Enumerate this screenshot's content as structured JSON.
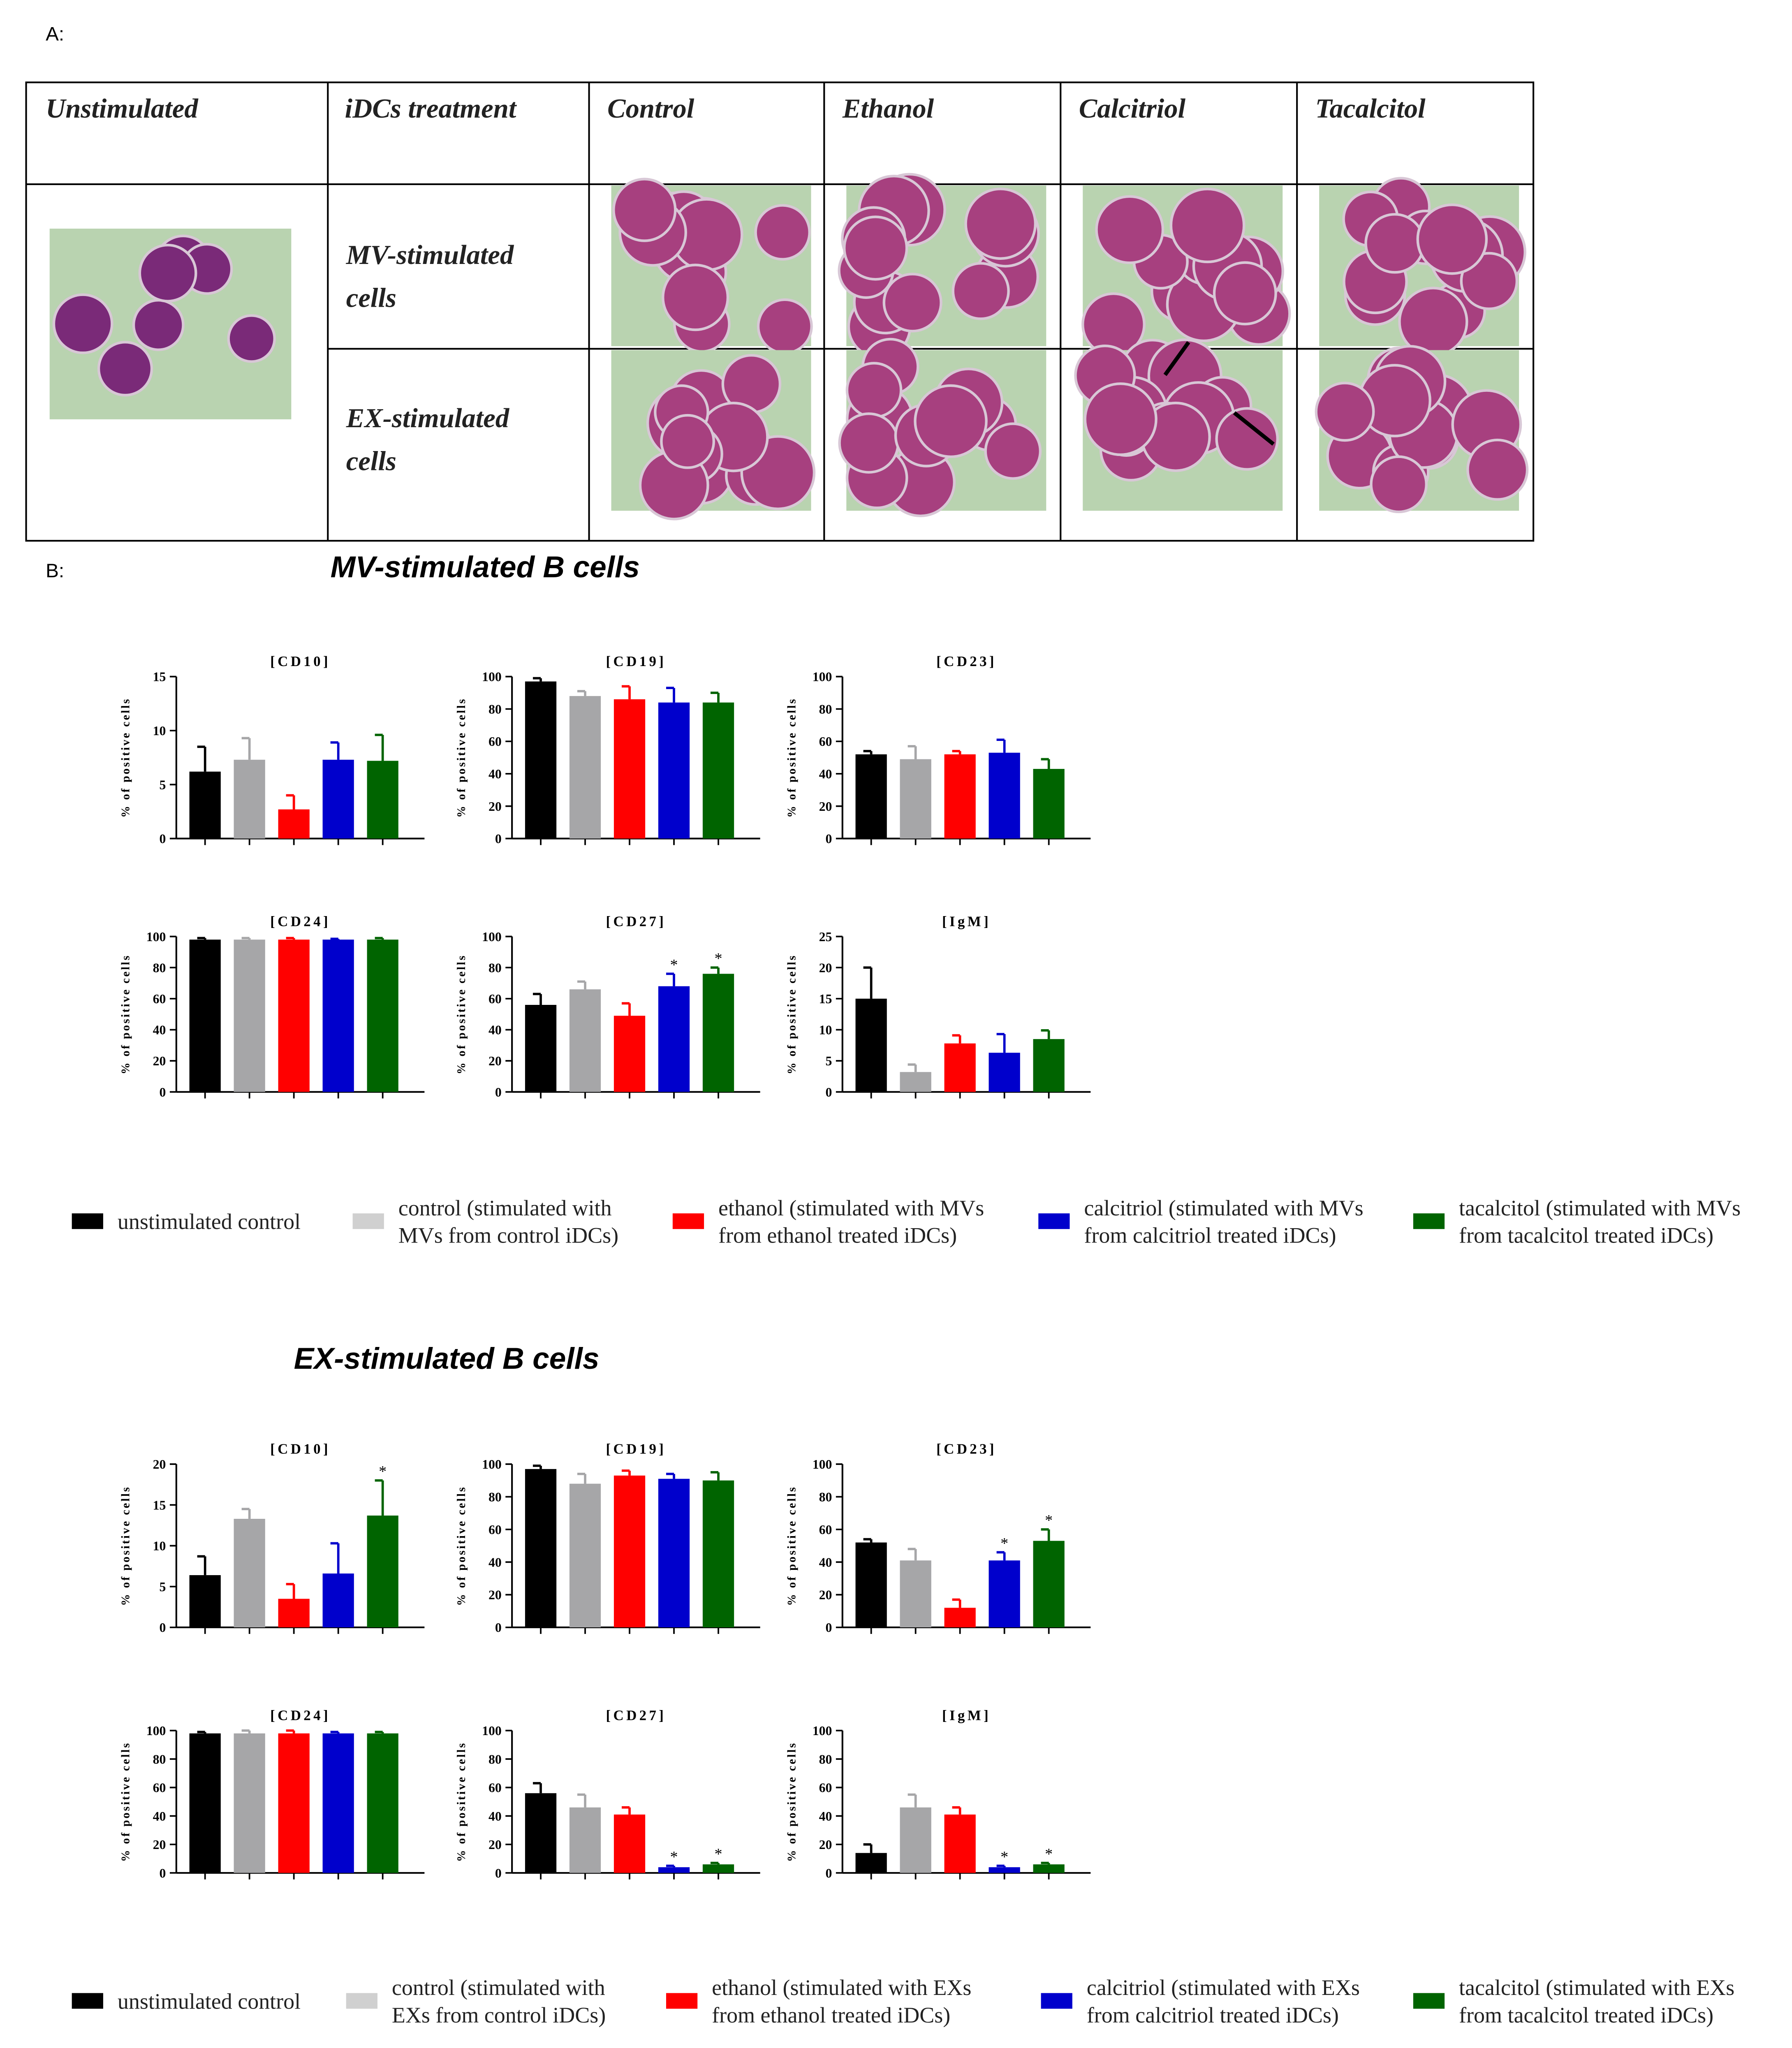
{
  "panel_a": {
    "label": "A:",
    "header": [
      "Unstimulated",
      "iDCs treatment",
      "Control",
      "Ethanol",
      "Calcitriol",
      "Tacalcitol"
    ],
    "rows": [
      {
        "label": [
          "MV-stimulated",
          "cells"
        ]
      },
      {
        "label": [
          "EX-stimulated",
          "cells"
        ]
      }
    ]
  },
  "panel_b": {
    "label": "B:",
    "sections": [
      "MV-stimulated B cells",
      "EX-stimulated B cells"
    ]
  },
  "chart_data": [
    {
      "type": "bar",
      "title": "[CD10]",
      "y_label": "% of positive cells",
      "ylim": [
        0,
        15
      ],
      "yticks": [
        0,
        5,
        10,
        15
      ],
      "values": [
        6.2,
        7.3,
        2.7,
        7.3,
        7.2
      ],
      "errors": [
        2.3,
        2.0,
        1.3,
        1.6,
        2.4
      ],
      "colors": [
        "#000000",
        "#a6a6a8",
        "#ff0000",
        "#0000cc",
        "#006400"
      ],
      "significance": [
        null,
        null,
        null,
        null,
        null
      ]
    },
    {
      "type": "bar",
      "title": "[CD19]",
      "y_label": "% of positive cells",
      "ylim": [
        0,
        100
      ],
      "yticks": [
        0,
        20,
        40,
        60,
        80,
        100
      ],
      "values": [
        97,
        88,
        86,
        84,
        84
      ],
      "errors": [
        2,
        3,
        8,
        9,
        6
      ],
      "colors": [
        "#000000",
        "#a6a6a8",
        "#ff0000",
        "#0000cc",
        "#006400"
      ],
      "significance": [
        null,
        null,
        null,
        null,
        null
      ]
    },
    {
      "type": "bar",
      "title": "[CD23]",
      "y_label": "% of positive cells",
      "ylim": [
        0,
        100
      ],
      "yticks": [
        0,
        20,
        40,
        60,
        80,
        100
      ],
      "values": [
        52,
        49,
        52,
        53,
        43
      ],
      "errors": [
        2,
        8,
        2,
        8,
        6
      ],
      "colors": [
        "#000000",
        "#a6a6a8",
        "#ff0000",
        "#0000cc",
        "#006400"
      ],
      "significance": [
        null,
        null,
        null,
        null,
        null
      ]
    },
    {
      "type": "bar",
      "title": "[CD24]",
      "y_label": "% of positive cells",
      "ylim": [
        0,
        100
      ],
      "yticks": [
        0,
        20,
        40,
        60,
        80,
        100
      ],
      "values": [
        98,
        98,
        98,
        98,
        98
      ],
      "errors": [
        1,
        1,
        1,
        0.5,
        1
      ],
      "colors": [
        "#000000",
        "#a6a6a8",
        "#ff0000",
        "#0000cc",
        "#006400"
      ],
      "significance": [
        null,
        null,
        null,
        null,
        null
      ]
    },
    {
      "type": "bar",
      "title": "[CD27]",
      "y_label": "% of positive cells",
      "ylim": [
        0,
        100
      ],
      "yticks": [
        0,
        20,
        40,
        60,
        80,
        100
      ],
      "values": [
        56,
        66,
        49,
        68,
        76
      ],
      "errors": [
        7,
        5,
        8,
        8,
        4
      ],
      "colors": [
        "#000000",
        "#a6a6a8",
        "#ff0000",
        "#0000cc",
        "#006400"
      ],
      "significance": [
        null,
        null,
        null,
        "*",
        "*"
      ]
    },
    {
      "type": "bar",
      "title": "[IgM]",
      "y_label": "% of positive cells",
      "ylim": [
        0,
        25
      ],
      "yticks": [
        0,
        5,
        10,
        15,
        20,
        25
      ],
      "values": [
        15,
        3.2,
        7.8,
        6.3,
        8.5
      ],
      "errors": [
        5,
        1.2,
        1.3,
        3,
        1.4
      ],
      "colors": [
        "#000000",
        "#a6a6a8",
        "#ff0000",
        "#0000cc",
        "#006400"
      ],
      "significance": [
        null,
        null,
        null,
        null,
        null
      ]
    },
    {
      "type": "bar",
      "title": "[CD10]",
      "y_label": "% of positive cells",
      "ylim": [
        0,
        20
      ],
      "yticks": [
        0,
        5,
        10,
        15,
        20
      ],
      "values": [
        6.4,
        13.3,
        3.5,
        6.6,
        13.7
      ],
      "errors": [
        2.3,
        1.2,
        1.8,
        3.7,
        4.3
      ],
      "colors": [
        "#000000",
        "#a6a6a8",
        "#ff0000",
        "#0000cc",
        "#006400"
      ],
      "significance": [
        null,
        null,
        null,
        null,
        "*"
      ]
    },
    {
      "type": "bar",
      "title": "[CD19]",
      "y_label": "% of positive cells",
      "ylim": [
        0,
        100
      ],
      "yticks": [
        0,
        20,
        40,
        60,
        80,
        100
      ],
      "values": [
        97,
        88,
        93,
        91,
        90
      ],
      "errors": [
        2,
        6,
        3,
        3,
        5
      ],
      "colors": [
        "#000000",
        "#a6a6a8",
        "#ff0000",
        "#0000cc",
        "#006400"
      ],
      "significance": [
        null,
        null,
        null,
        null,
        null
      ]
    },
    {
      "type": "bar",
      "title": "[CD23]",
      "y_label": "% of positive cells",
      "ylim": [
        0,
        100
      ],
      "yticks": [
        0,
        20,
        40,
        60,
        80,
        100
      ],
      "values": [
        52,
        41,
        12,
        41,
        53
      ],
      "errors": [
        2,
        7,
        5,
        5,
        7
      ],
      "colors": [
        "#000000",
        "#a6a6a8",
        "#ff0000",
        "#0000cc",
        "#006400"
      ],
      "significance": [
        null,
        null,
        null,
        "*",
        "*"
      ]
    },
    {
      "type": "bar",
      "title": "[CD24]",
      "y_label": "% of positive cells",
      "ylim": [
        0,
        100
      ],
      "yticks": [
        0,
        20,
        40,
        60,
        80,
        100
      ],
      "values": [
        98,
        98,
        98,
        98,
        98
      ],
      "errors": [
        1,
        2,
        2,
        1,
        1
      ],
      "colors": [
        "#000000",
        "#a6a6a8",
        "#ff0000",
        "#0000cc",
        "#006400"
      ],
      "significance": [
        null,
        null,
        null,
        null,
        null
      ]
    },
    {
      "type": "bar",
      "title": "[CD27]",
      "y_label": "% of positive cells",
      "ylim": [
        0,
        100
      ],
      "yticks": [
        0,
        20,
        40,
        60,
        80,
        100
      ],
      "values": [
        56,
        46,
        41,
        4,
        6
      ],
      "errors": [
        7,
        9,
        5,
        1,
        1
      ],
      "colors": [
        "#000000",
        "#a6a6a8",
        "#ff0000",
        "#0000cc",
        "#006400"
      ],
      "significance": [
        null,
        null,
        null,
        "*",
        "*"
      ]
    },
    {
      "type": "bar",
      "title": "[IgM]",
      "y_label": "% of positive cells",
      "ylim": [
        0,
        100
      ],
      "yticks": [
        0,
        20,
        40,
        60,
        80,
        100
      ],
      "values": [
        14,
        46,
        41,
        4,
        6
      ],
      "errors": [
        6,
        9,
        5,
        1,
        1
      ],
      "colors": [
        "#000000",
        "#a6a6a8",
        "#ff0000",
        "#0000cc",
        "#006400"
      ],
      "significance": [
        null,
        null,
        null,
        "*",
        "*"
      ]
    }
  ],
  "legends": [
    {
      "items": [
        {
          "name": [
            "unstimulated control"
          ],
          "color": "#000000"
        },
        {
          "name": [
            "control (stimulated with",
            "MVs from control iDCs)"
          ],
          "color": "#d0d0d0"
        },
        {
          "name": [
            "ethanol (stimulated with MVs",
            "from ethanol treated iDCs)"
          ],
          "color": "#ff0000"
        },
        {
          "name": [
            "calcitriol (stimulated with MVs",
            "from calcitriol treated iDCs)"
          ],
          "color": "#0000cc"
        },
        {
          "name": [
            "tacalcitol (stimulated with MVs",
            "from tacalcitol treated iDCs)"
          ],
          "color": "#006400"
        }
      ]
    },
    {
      "items": [
        {
          "name": [
            "unstimulated control"
          ],
          "color": "#000000"
        },
        {
          "name": [
            "control (stimulated with",
            "EXs from control iDCs)"
          ],
          "color": "#d0d0d0"
        },
        {
          "name": [
            "ethanol (stimulated with EXs",
            "from ethanol treated iDCs)"
          ],
          "color": "#ff0000"
        },
        {
          "name": [
            "calcitriol (stimulated with EXs",
            "from calcitriol treated iDCs)"
          ],
          "color": "#0000cc"
        },
        {
          "name": [
            "tacalcitol (stimulated with EXs",
            "from tacalcitol treated iDCs)"
          ],
          "color": "#006400"
        }
      ]
    }
  ]
}
